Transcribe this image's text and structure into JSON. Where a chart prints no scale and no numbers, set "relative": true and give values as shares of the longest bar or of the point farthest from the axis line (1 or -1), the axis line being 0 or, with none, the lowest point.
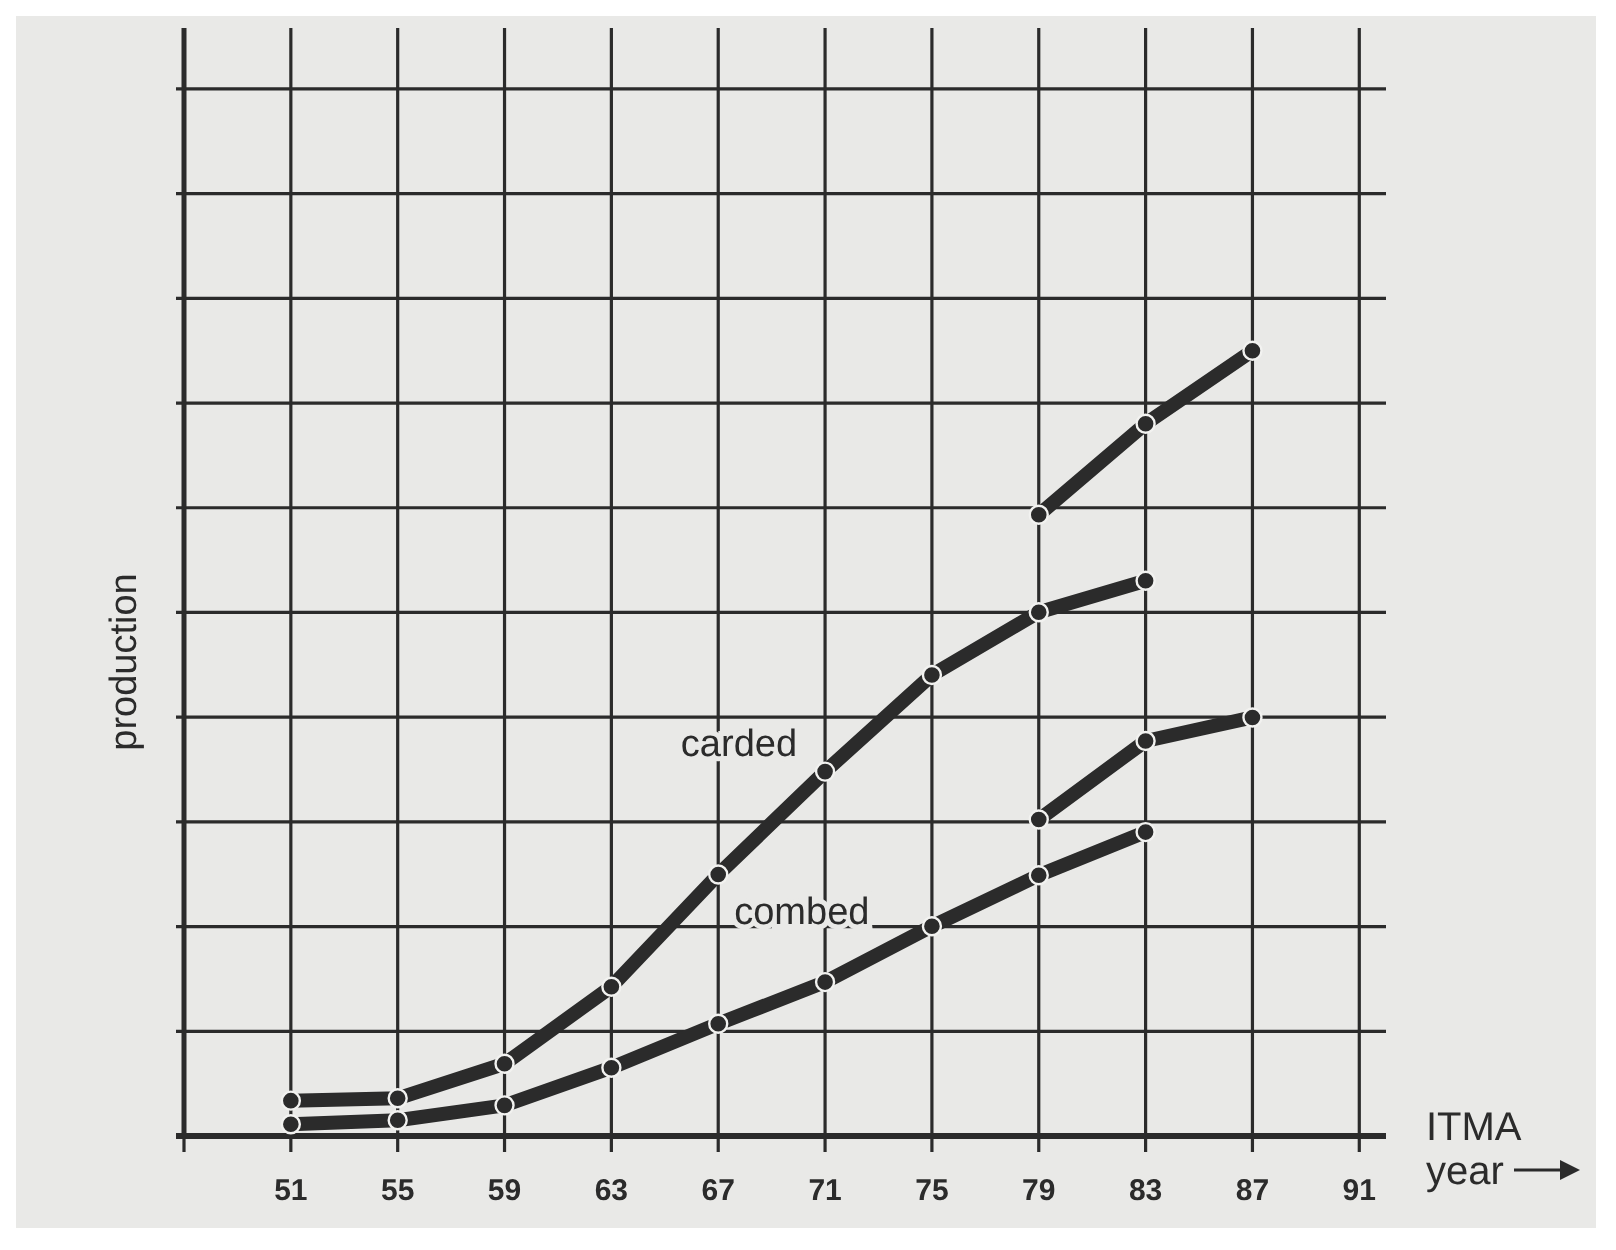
{
  "chart_data": {
    "type": "line",
    "relative": true,
    "ylabel": "production",
    "xlabel": "ITMA\nyear",
    "xlim": [
      47,
      92
    ],
    "xticks": [
      {
        "value": 47,
        "label": null
      },
      51,
      55,
      59,
      63,
      67,
      71,
      75,
      79,
      83,
      87,
      91
    ],
    "grid": true,
    "marker": "circle",
    "line_style": "solid",
    "legend": false,
    "series": [
      {
        "name": "carded",
        "color": "#2b2b2b",
        "x": [
          51,
          55,
          59,
          63,
          67,
          71,
          75,
          79,
          83
        ],
        "values": [
          0.045,
          0.048,
          0.092,
          0.19,
          0.333,
          0.464,
          0.587,
          0.667,
          0.707
        ]
      },
      {
        "name": "combed",
        "color": "#2b2b2b",
        "x": [
          51,
          55,
          59,
          63,
          67,
          71,
          75,
          79,
          83
        ],
        "values": [
          0.015,
          0.02,
          0.039,
          0.087,
          0.143,
          0.196,
          0.267,
          0.332,
          0.387
        ]
      },
      {
        "color": "#2b2b2b",
        "x": [
          79,
          83,
          87
        ],
        "values": [
          0.791,
          0.907,
          1
        ]
      },
      {
        "color": "#2b2b2b",
        "x": [
          79,
          83,
          87
        ],
        "values": [
          0.403,
          0.503,
          0.533
        ]
      }
    ]
  }
}
